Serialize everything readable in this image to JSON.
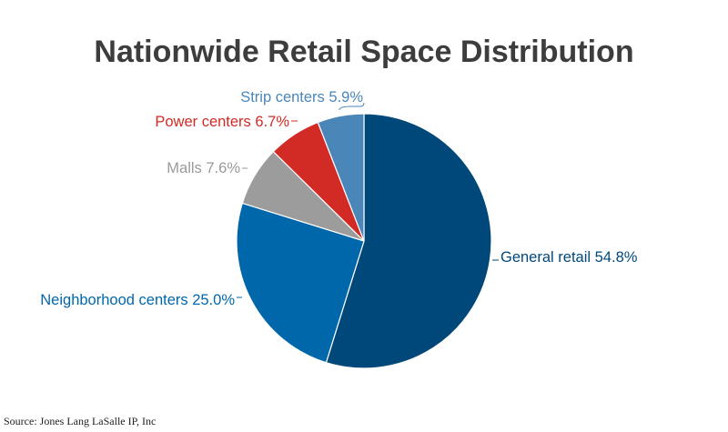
{
  "chart_data": {
    "type": "pie",
    "title": "Nationwide Retail Space Distribution",
    "source": "Source: Jones Lang LaSalle IP, Inc",
    "slices": [
      {
        "label": "General retail",
        "value": 54.8,
        "value_text": "54.8%",
        "color": "#00487a"
      },
      {
        "label": "Neighborhood centers",
        "value": 25.0,
        "value_text": "25.0%",
        "color": "#0067ab"
      },
      {
        "label": "Malls",
        "value": 7.6,
        "value_text": "7.6%",
        "color": "#9c9c9c"
      },
      {
        "label": "Power centers",
        "value": 6.7,
        "value_text": "6.7%",
        "color": "#d22b26"
      },
      {
        "label": "Strip centers",
        "value": 5.9,
        "value_text": "5.9%",
        "color": "#4a86b8"
      }
    ],
    "start": "12 o'clock",
    "direction": "clockwise"
  }
}
